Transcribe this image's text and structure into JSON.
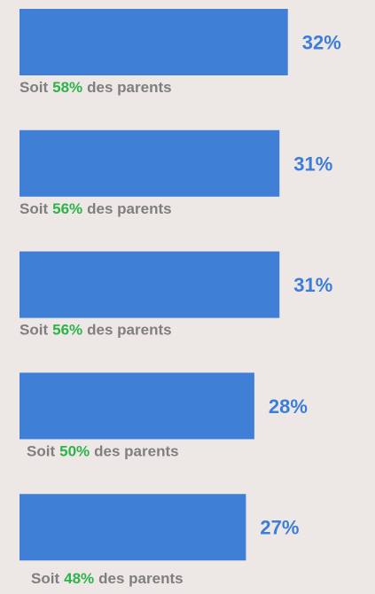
{
  "chart_data": {
    "type": "bar",
    "orientation": "horizontal",
    "values": [
      32,
      31,
      31,
      28,
      27
    ],
    "value_labels": [
      "32%",
      "31%",
      "31%",
      "28%",
      "27%"
    ],
    "color": "#3f7fd6",
    "annotations": [
      [
        "Soit",
        "58%",
        "des parents"
      ],
      [
        "Soit",
        "56%",
        "des parents"
      ],
      [
        "Soit",
        "56%",
        "des parents"
      ],
      [
        "Soit",
        "50%",
        "des parents"
      ],
      [
        "Soit",
        "48%",
        "des parents"
      ]
    ]
  }
}
